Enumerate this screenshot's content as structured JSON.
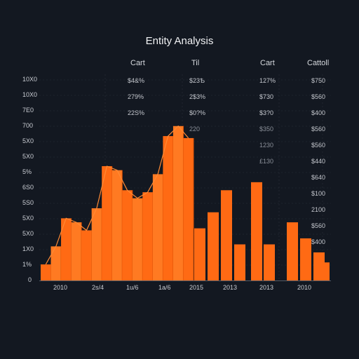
{
  "chart_data": {
    "type": "bar",
    "title": "Entity Analysis",
    "column_headers": [
      "Cart",
      "Til",
      "Cart",
      "Cattoll"
    ],
    "y_tick_labels": [
      "0",
      "1%",
      "1X0",
      "5X0",
      "5X0",
      "5S0",
      "6S0",
      "5%",
      "5X0",
      "5X0",
      "700",
      "7E0",
      "10X0",
      "10X0"
    ],
    "x_tick_labels": [
      "2010",
      "2s/4",
      "1u/6",
      "1a/6",
      "2015",
      "2013",
      "2013",
      "2010"
    ],
    "ylim": [
      0,
      100
    ],
    "area_values": [
      8,
      17,
      31,
      29,
      25,
      36,
      57,
      55,
      45,
      41,
      44,
      53,
      72,
      77,
      71
    ],
    "bar_values": [
      26,
      34,
      45,
      18,
      49,
      18,
      29,
      21,
      14,
      9
    ],
    "table_columns": [
      [
        "$4&%",
        "279%",
        "22S%"
      ],
      [
        "$23Ѣ",
        "2$3%",
        "$0?%",
        "220"
      ],
      [
        "127%",
        "$730",
        "$3?0",
        "$350",
        "1230",
        "£130"
      ],
      [
        "$750",
        "$560",
        "$400",
        "$560",
        "$560",
        "$440",
        "$640",
        "$100",
        "2100",
        "$560",
        "$400"
      ]
    ],
    "colors": {
      "accent": "#ff6a14",
      "accent_dark": "#d94f05",
      "grid": "#2a303b",
      "background": "#131821"
    }
  }
}
